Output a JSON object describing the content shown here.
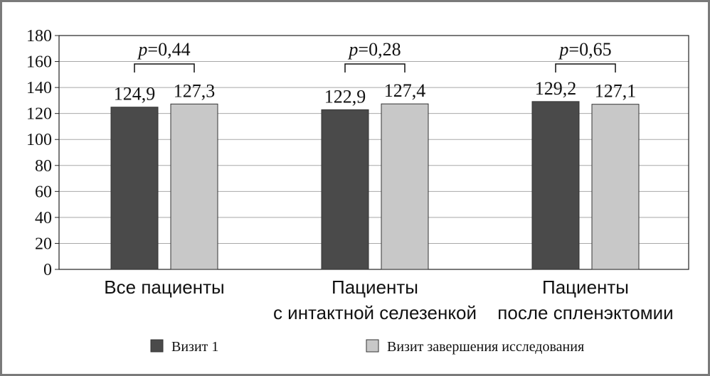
{
  "chart_data": {
    "type": "bar",
    "categories": [
      [
        "Все пациенты"
      ],
      [
        "Пациенты",
        "с интактной селезенкой"
      ],
      [
        "Пациенты",
        "после спленэктомии"
      ]
    ],
    "series": [
      {
        "name": "Визит 1",
        "values": [
          124.9,
          122.9,
          129.2
        ],
        "labels": [
          "124,9",
          "122,9",
          "129,2"
        ],
        "color": "#4a4a4a"
      },
      {
        "name": "Визит завершения исследования",
        "values": [
          127.3,
          127.4,
          127.1
        ],
        "labels": [
          "127,3",
          "127,4",
          "127,1"
        ],
        "color": "#c8c8c8"
      }
    ],
    "p_values": [
      {
        "italic": "p",
        "text": "=0,44"
      },
      {
        "italic": "p",
        "text": "=0,28"
      },
      {
        "italic": "p",
        "text": "=0,65"
      }
    ],
    "ylim": [
      0,
      180
    ],
    "yticks": [
      0,
      20,
      40,
      60,
      80,
      100,
      120,
      140,
      160,
      180
    ],
    "grid": true,
    "legend_position": "bottom"
  }
}
